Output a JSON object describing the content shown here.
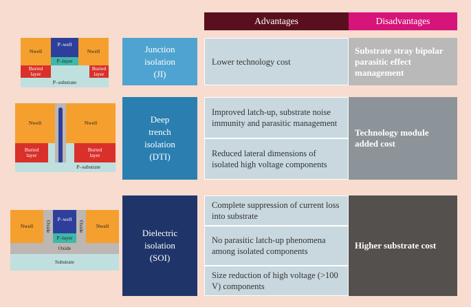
{
  "header": {
    "advantages": "Advantages",
    "disadvantages": "Disadvantages"
  },
  "rows": [
    {
      "method": "Junction\nisolation\n(JI)",
      "advantages": [
        "Lower technology cost"
      ],
      "disadvantage": "Substrate stray bipolar parasitic effect management",
      "diagram": {
        "nwell_left": "Nwell",
        "nwell_right": "Nwell",
        "pwell": "P–well",
        "player": "P–layer",
        "buried_left": "Buried\nlayer",
        "buried_right": "Buried\nlayer",
        "substrate": "P–substrate"
      }
    },
    {
      "method": "Deep\ntrench\nisolation\n(DTI)",
      "advantages": [
        "Improved latch-up, substrate noise immunity and parasitic management",
        "Reduced lateral dimensions of isolated high voltage components"
      ],
      "disadvantage": "Technology module added cost",
      "diagram": {
        "nwell_left": "Nwell",
        "nwell_right": "Nwell",
        "buried_left": "Buried\nlayer",
        "buried_right": "Buried\nlayer",
        "substrate": "P–substrate"
      }
    },
    {
      "method": "Dielectric\nisolation\n(SOI)",
      "advantages": [
        "Complete suppression of current loss into substrate",
        "No parasitic latch-up phenomena among isolated components",
        "Size reduction of high voltage (>100 V) components"
      ],
      "disadvantage": "Higher substrate cost",
      "diagram": {
        "nwell_left": "Nwell",
        "nwell_right": "Nwell",
        "pwell": "P–well",
        "player": "P–layer",
        "oxide_left": "Oxide",
        "oxide_right": "Oxide",
        "oxide_bottom": "Oxide",
        "substrate": "Substrate"
      }
    }
  ],
  "colors": {
    "advantages_header": "#5a0f1e",
    "disadvantages_header": "#d6147a",
    "ji_method": "#4fa3d0",
    "dti_method": "#2a7fb0",
    "soi_method": "#1f3569",
    "ji_dis": "#b9b9b9",
    "dti_dis": "#8c9499",
    "soi_dis": "#54504d"
  }
}
